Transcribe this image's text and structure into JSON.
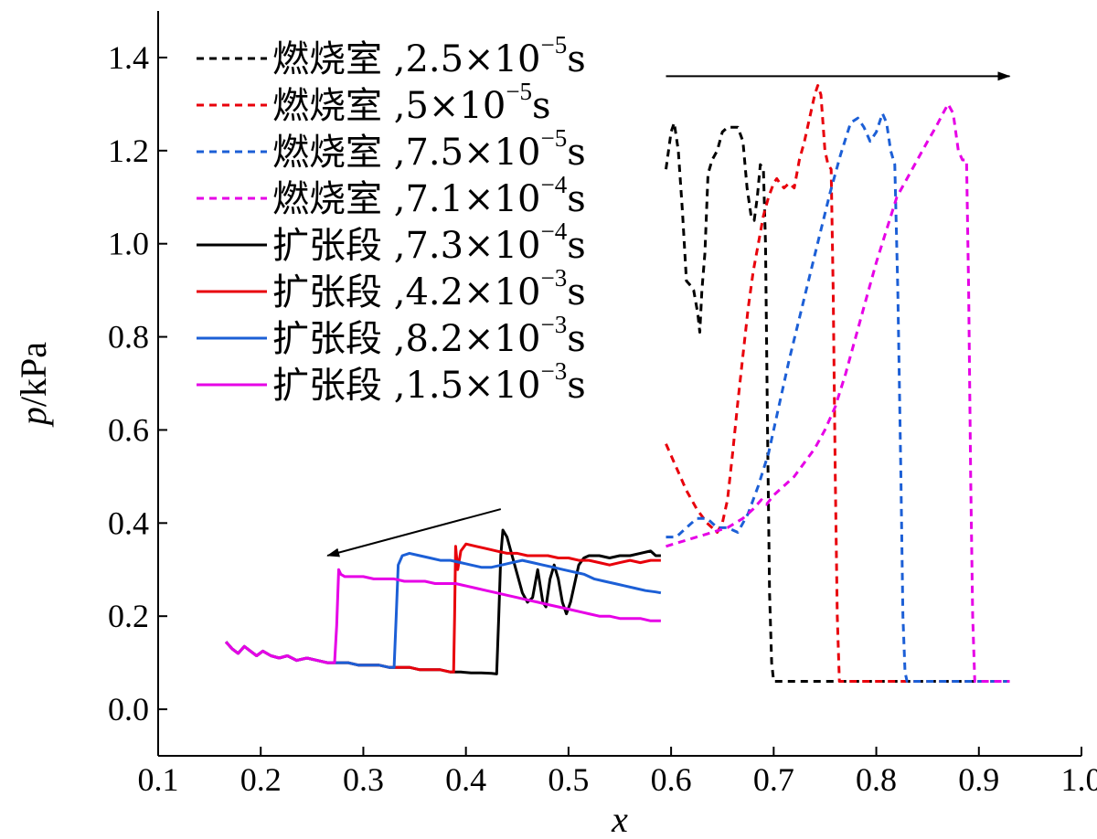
{
  "chart_data": {
    "type": "line",
    "title": "",
    "xlabel": "x",
    "ylabel": {
      "var": "p",
      "unit": "/kPa"
    },
    "xlim": [
      0.1,
      1.0
    ],
    "ylim": [
      -0.1,
      1.5
    ],
    "x_ticks": [
      {
        "v": 0.1,
        "label": "0.1"
      },
      {
        "v": 0.2,
        "label": "0.2"
      },
      {
        "v": 0.3,
        "label": "0.3"
      },
      {
        "v": 0.4,
        "label": "0.4"
      },
      {
        "v": 0.5,
        "label": "0.5"
      },
      {
        "v": 0.6,
        "label": "0.6"
      },
      {
        "v": 0.7,
        "label": "0.7"
      },
      {
        "v": 0.8,
        "label": "0.8"
      },
      {
        "v": 0.9,
        "label": "0.9"
      },
      {
        "v": 1.0,
        "label": "1.0"
      }
    ],
    "y_ticks": [
      {
        "v": 0.0,
        "label": "0.0"
      },
      {
        "v": 0.2,
        "label": "0.2"
      },
      {
        "v": 0.4,
        "label": "0.4"
      },
      {
        "v": 0.6,
        "label": "0.6"
      },
      {
        "v": 0.8,
        "label": "0.8"
      },
      {
        "v": 1.0,
        "label": "1.0"
      },
      {
        "v": 1.2,
        "label": "1.2"
      },
      {
        "v": 1.4,
        "label": "1.4"
      }
    ],
    "grid": false,
    "legend_position": "top-left",
    "annotations": [
      {
        "type": "arrow",
        "from": [
          0.595,
          1.36
        ],
        "to": [
          0.93,
          1.36
        ],
        "direction": "right"
      },
      {
        "type": "arrow",
        "from": [
          0.434,
          0.43
        ],
        "to": [
          0.265,
          0.33
        ],
        "direction": "left"
      }
    ],
    "series": [
      {
        "region": "燃烧室",
        "time": "2.5×10",
        "exp": "−5",
        "unit": "s",
        "color": "#000000",
        "style": "dashed",
        "x": [
          0.595,
          0.6,
          0.603,
          0.607,
          0.611,
          0.615,
          0.619,
          0.622,
          0.626,
          0.628,
          0.63,
          0.633,
          0.636,
          0.64,
          0.645,
          0.65,
          0.655,
          0.66,
          0.665,
          0.67,
          0.674,
          0.678,
          0.681,
          0.684,
          0.687,
          0.69,
          0.692,
          0.694,
          0.696,
          0.698,
          0.7,
          0.705,
          0.72,
          0.75,
          0.8,
          0.85,
          0.9,
          0.93
        ],
        "y": [
          1.16,
          1.24,
          1.26,
          1.2,
          1.07,
          0.92,
          0.91,
          0.9,
          0.85,
          0.81,
          0.9,
          0.98,
          1.15,
          1.18,
          1.2,
          1.24,
          1.25,
          1.25,
          1.25,
          1.22,
          1.12,
          1.06,
          1.05,
          1.1,
          1.17,
          1.16,
          1.0,
          0.6,
          0.25,
          0.1,
          0.06,
          0.06,
          0.06,
          0.06,
          0.06,
          0.06,
          0.06,
          0.06
        ]
      },
      {
        "region": "燃烧室",
        "time": "5×10",
        "exp": "−5",
        "unit": "s",
        "color": "#e8000b",
        "style": "dashed",
        "x": [
          0.595,
          0.605,
          0.615,
          0.625,
          0.635,
          0.645,
          0.65,
          0.655,
          0.66,
          0.665,
          0.67,
          0.675,
          0.68,
          0.685,
          0.69,
          0.695,
          0.7,
          0.703,
          0.706,
          0.71,
          0.715,
          0.72,
          0.725,
          0.73,
          0.735,
          0.74,
          0.743,
          0.746,
          0.75,
          0.753,
          0.756,
          0.758,
          0.76,
          0.762,
          0.764,
          0.77,
          0.8,
          0.85,
          0.9,
          0.93
        ],
        "y": [
          0.57,
          0.52,
          0.47,
          0.43,
          0.4,
          0.38,
          0.4,
          0.45,
          0.55,
          0.66,
          0.76,
          0.86,
          0.94,
          1.0,
          1.06,
          1.1,
          1.13,
          1.14,
          1.13,
          1.12,
          1.13,
          1.12,
          1.18,
          1.22,
          1.27,
          1.32,
          1.34,
          1.32,
          1.2,
          1.17,
          1.16,
          0.9,
          0.5,
          0.2,
          0.06,
          0.06,
          0.06,
          0.06,
          0.06,
          0.06
        ]
      },
      {
        "region": "燃烧室",
        "time": "7.5×10",
        "exp": "−5",
        "unit": "s",
        "color": "#1c5fd6",
        "style": "dashed",
        "x": [
          0.595,
          0.605,
          0.615,
          0.625,
          0.635,
          0.645,
          0.655,
          0.665,
          0.675,
          0.685,
          0.695,
          0.705,
          0.715,
          0.725,
          0.735,
          0.745,
          0.755,
          0.765,
          0.775,
          0.782,
          0.788,
          0.794,
          0.8,
          0.806,
          0.81,
          0.814,
          0.818,
          0.821,
          0.824,
          0.826,
          0.828,
          0.83,
          0.84,
          0.87,
          0.9,
          0.93
        ],
        "y": [
          0.37,
          0.37,
          0.39,
          0.41,
          0.41,
          0.39,
          0.39,
          0.38,
          0.42,
          0.48,
          0.55,
          0.65,
          0.75,
          0.84,
          0.93,
          1.02,
          1.11,
          1.19,
          1.26,
          1.27,
          1.25,
          1.22,
          1.24,
          1.28,
          1.26,
          1.2,
          1.17,
          0.9,
          0.5,
          0.2,
          0.08,
          0.06,
          0.06,
          0.06,
          0.06,
          0.06
        ]
      },
      {
        "region": "燃烧室",
        "time": "7.1×10",
        "exp": "−4",
        "unit": "s",
        "color": "#e600e6",
        "style": "dashed",
        "x": [
          0.595,
          0.61,
          0.625,
          0.64,
          0.655,
          0.67,
          0.68,
          0.688,
          0.693,
          0.7,
          0.71,
          0.72,
          0.73,
          0.74,
          0.75,
          0.76,
          0.77,
          0.78,
          0.79,
          0.8,
          0.81,
          0.82,
          0.83,
          0.84,
          0.85,
          0.858,
          0.865,
          0.87,
          0.875,
          0.88,
          0.884,
          0.888,
          0.89,
          0.892,
          0.894,
          0.896,
          0.9,
          0.93
        ],
        "y": [
          0.35,
          0.36,
          0.37,
          0.38,
          0.39,
          0.41,
          0.43,
          0.45,
          0.44,
          0.46,
          0.48,
          0.5,
          0.53,
          0.56,
          0.6,
          0.65,
          0.72,
          0.8,
          0.88,
          0.96,
          1.03,
          1.1,
          1.14,
          1.18,
          1.22,
          1.25,
          1.28,
          1.3,
          1.28,
          1.2,
          1.18,
          1.18,
          0.9,
          0.5,
          0.2,
          0.06,
          0.06,
          0.06
        ]
      },
      {
        "region": "扩张段",
        "time": "7.3×10",
        "exp": "−4",
        "unit": "s",
        "color": "#000000",
        "style": "solid",
        "x": [
          0.166,
          0.172,
          0.178,
          0.184,
          0.19,
          0.196,
          0.202,
          0.21,
          0.218,
          0.226,
          0.235,
          0.245,
          0.255,
          0.265,
          0.275,
          0.285,
          0.295,
          0.305,
          0.315,
          0.325,
          0.335,
          0.345,
          0.355,
          0.365,
          0.375,
          0.385,
          0.395,
          0.405,
          0.415,
          0.425,
          0.43,
          0.432,
          0.434,
          0.436,
          0.44,
          0.445,
          0.45,
          0.455,
          0.46,
          0.465,
          0.47,
          0.475,
          0.478,
          0.482,
          0.486,
          0.49,
          0.494,
          0.498,
          0.502,
          0.506,
          0.51,
          0.515,
          0.52,
          0.53,
          0.54,
          0.55,
          0.56,
          0.57,
          0.58,
          0.585,
          0.59
        ],
        "y": [
          0.145,
          0.13,
          0.12,
          0.135,
          0.125,
          0.115,
          0.125,
          0.115,
          0.11,
          0.115,
          0.105,
          0.11,
          0.105,
          0.1,
          0.1,
          0.1,
          0.095,
          0.095,
          0.095,
          0.09,
          0.09,
          0.09,
          0.085,
          0.085,
          0.085,
          0.08,
          0.08,
          0.078,
          0.078,
          0.077,
          0.076,
          0.2,
          0.33,
          0.385,
          0.37,
          0.33,
          0.29,
          0.25,
          0.23,
          0.24,
          0.3,
          0.23,
          0.22,
          0.28,
          0.31,
          0.28,
          0.23,
          0.205,
          0.23,
          0.27,
          0.31,
          0.325,
          0.33,
          0.33,
          0.325,
          0.33,
          0.33,
          0.335,
          0.34,
          0.33,
          0.33
        ]
      },
      {
        "region": "扩张段",
        "time": "4.2×10",
        "exp": "−3",
        "unit": "s",
        "color": "#e8000b",
        "style": "solid",
        "x": [
          0.166,
          0.172,
          0.178,
          0.184,
          0.19,
          0.196,
          0.202,
          0.21,
          0.218,
          0.226,
          0.235,
          0.245,
          0.255,
          0.265,
          0.275,
          0.285,
          0.295,
          0.305,
          0.315,
          0.325,
          0.335,
          0.345,
          0.355,
          0.365,
          0.375,
          0.385,
          0.388,
          0.389,
          0.39,
          0.392,
          0.395,
          0.4,
          0.41,
          0.42,
          0.43,
          0.44,
          0.45,
          0.46,
          0.47,
          0.48,
          0.49,
          0.5,
          0.51,
          0.52,
          0.53,
          0.54,
          0.55,
          0.56,
          0.57,
          0.58,
          0.59
        ],
        "y": [
          0.145,
          0.13,
          0.12,
          0.135,
          0.125,
          0.115,
          0.125,
          0.115,
          0.11,
          0.115,
          0.105,
          0.11,
          0.105,
          0.1,
          0.1,
          0.1,
          0.095,
          0.095,
          0.095,
          0.09,
          0.09,
          0.09,
          0.085,
          0.085,
          0.085,
          0.08,
          0.08,
          0.2,
          0.35,
          0.3,
          0.34,
          0.355,
          0.35,
          0.345,
          0.34,
          0.335,
          0.335,
          0.33,
          0.33,
          0.33,
          0.325,
          0.325,
          0.32,
          0.32,
          0.315,
          0.31,
          0.315,
          0.32,
          0.315,
          0.32,
          0.32
        ]
      },
      {
        "region": "扩张段",
        "time": "8.2×10",
        "exp": "−3",
        "unit": "s",
        "color": "#1c5fd6",
        "style": "solid",
        "x": [
          0.166,
          0.172,
          0.178,
          0.184,
          0.19,
          0.196,
          0.202,
          0.21,
          0.218,
          0.226,
          0.235,
          0.245,
          0.255,
          0.265,
          0.275,
          0.285,
          0.295,
          0.305,
          0.315,
          0.325,
          0.33,
          0.332,
          0.334,
          0.338,
          0.345,
          0.355,
          0.365,
          0.375,
          0.385,
          0.395,
          0.405,
          0.415,
          0.425,
          0.435,
          0.445,
          0.455,
          0.465,
          0.475,
          0.485,
          0.495,
          0.505,
          0.515,
          0.525,
          0.535,
          0.545,
          0.555,
          0.565,
          0.575,
          0.585,
          0.59
        ],
        "y": [
          0.145,
          0.13,
          0.12,
          0.135,
          0.125,
          0.115,
          0.125,
          0.115,
          0.11,
          0.115,
          0.105,
          0.11,
          0.105,
          0.1,
          0.1,
          0.1,
          0.095,
          0.095,
          0.095,
          0.09,
          0.09,
          0.2,
          0.31,
          0.33,
          0.335,
          0.33,
          0.325,
          0.32,
          0.32,
          0.315,
          0.31,
          0.305,
          0.305,
          0.31,
          0.315,
          0.32,
          0.315,
          0.31,
          0.305,
          0.3,
          0.295,
          0.29,
          0.28,
          0.275,
          0.27,
          0.265,
          0.26,
          0.255,
          0.252,
          0.25
        ]
      },
      {
        "region": "扩张段",
        "time": "1.5×10",
        "exp": "−3",
        "unit": "s",
        "color": "#e600e6",
        "style": "solid",
        "x": [
          0.166,
          0.172,
          0.178,
          0.184,
          0.19,
          0.196,
          0.202,
          0.21,
          0.218,
          0.226,
          0.235,
          0.245,
          0.255,
          0.265,
          0.272,
          0.274,
          0.276,
          0.278,
          0.282,
          0.29,
          0.3,
          0.31,
          0.32,
          0.33,
          0.34,
          0.35,
          0.36,
          0.37,
          0.38,
          0.39,
          0.4,
          0.41,
          0.42,
          0.43,
          0.44,
          0.45,
          0.46,
          0.47,
          0.48,
          0.49,
          0.5,
          0.51,
          0.52,
          0.53,
          0.54,
          0.55,
          0.56,
          0.57,
          0.58,
          0.59
        ],
        "y": [
          0.145,
          0.13,
          0.12,
          0.135,
          0.125,
          0.115,
          0.125,
          0.115,
          0.11,
          0.115,
          0.105,
          0.11,
          0.105,
          0.1,
          0.1,
          0.18,
          0.3,
          0.29,
          0.285,
          0.285,
          0.285,
          0.28,
          0.28,
          0.28,
          0.275,
          0.275,
          0.275,
          0.27,
          0.27,
          0.27,
          0.265,
          0.26,
          0.255,
          0.25,
          0.245,
          0.24,
          0.235,
          0.23,
          0.225,
          0.22,
          0.215,
          0.21,
          0.205,
          0.2,
          0.2,
          0.195,
          0.195,
          0.195,
          0.19,
          0.19
        ]
      }
    ]
  }
}
